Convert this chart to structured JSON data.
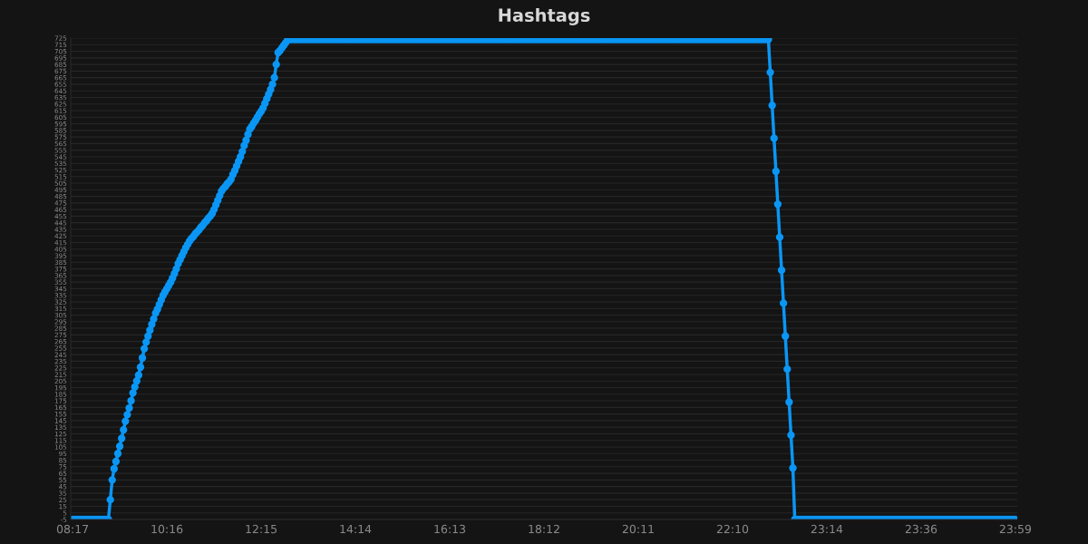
{
  "chart_data": {
    "type": "line",
    "title": "Hashtags",
    "categories": [
      "08:17",
      null,
      null,
      null,
      null,
      null,
      null,
      null,
      null,
      null,
      null,
      null,
      null,
      null,
      null,
      null,
      null,
      null,
      null,
      null,
      null,
      null,
      null,
      null,
      null,
      null,
      null,
      null,
      null,
      null,
      null,
      null,
      null,
      null,
      null,
      null,
      null,
      null,
      null,
      null,
      null,
      null,
      null,
      null,
      null,
      null,
      null,
      null,
      null,
      null,
      "10:16",
      null,
      null,
      null,
      null,
      null,
      null,
      null,
      null,
      null,
      null,
      null,
      null,
      null,
      null,
      null,
      null,
      null,
      null,
      null,
      null,
      null,
      null,
      null,
      null,
      null,
      null,
      null,
      null,
      null,
      null,
      null,
      null,
      null,
      null,
      null,
      null,
      null,
      null,
      null,
      null,
      null,
      null,
      null,
      null,
      null,
      null,
      null,
      null,
      null,
      "12:15",
      null,
      null,
      null,
      null,
      null,
      null,
      null,
      null,
      null,
      null,
      null,
      null,
      null,
      null,
      null,
      null,
      null,
      null,
      null,
      null,
      null,
      null,
      null,
      null,
      null,
      null,
      null,
      null,
      null,
      null,
      null,
      null,
      null,
      null,
      null,
      null,
      null,
      null,
      null,
      null,
      null,
      null,
      null,
      null,
      null,
      null,
      null,
      null,
      null,
      "14:14",
      null,
      null,
      null,
      null,
      null,
      null,
      null,
      null,
      null,
      null,
      null,
      null,
      null,
      null,
      null,
      null,
      null,
      null,
      null,
      null,
      null,
      null,
      null,
      null,
      null,
      null,
      null,
      null,
      null,
      null,
      null,
      null,
      null,
      null,
      null,
      null,
      null,
      null,
      null,
      null,
      null,
      null,
      null,
      null,
      null,
      null,
      null,
      null,
      null,
      "16:13",
      null,
      null,
      null,
      null,
      null,
      null,
      null,
      null,
      null,
      null,
      null,
      null,
      null,
      null,
      null,
      null,
      null,
      null,
      null,
      null,
      null,
      null,
      null,
      null,
      null,
      null,
      null,
      null,
      null,
      null,
      null,
      null,
      null,
      null,
      null,
      null,
      null,
      null,
      null,
      null,
      null,
      null,
      null,
      null,
      null,
      null,
      null,
      null,
      null,
      "18:12",
      null,
      null,
      null,
      null,
      null,
      null,
      null,
      null,
      null,
      null,
      null,
      null,
      null,
      null,
      null,
      null,
      null,
      null,
      null,
      null,
      null,
      null,
      null,
      null,
      null,
      null,
      null,
      null,
      null,
      null,
      null,
      null,
      null,
      null,
      null,
      null,
      null,
      null,
      null,
      null,
      null,
      null,
      null,
      null,
      null,
      null,
      null,
      null,
      null,
      "20:11",
      null,
      null,
      null,
      null,
      null,
      null,
      null,
      null,
      null,
      null,
      null,
      null,
      null,
      null,
      null,
      null,
      null,
      null,
      null,
      null,
      null,
      null,
      null,
      null,
      null,
      null,
      null,
      null,
      null,
      null,
      null,
      null,
      null,
      null,
      null,
      null,
      null,
      null,
      null,
      null,
      null,
      null,
      null,
      null,
      null,
      null,
      null,
      null,
      null,
      "22:10",
      null,
      null,
      null,
      null,
      null,
      null,
      null,
      null,
      null,
      null,
      null,
      null,
      null,
      null,
      null,
      null,
      null,
      null,
      null,
      null,
      null,
      null,
      null,
      null,
      null,
      null,
      null,
      null,
      null,
      null,
      null,
      null,
      null,
      null,
      null,
      null,
      null,
      null,
      null,
      null,
      null,
      null,
      null,
      null,
      null,
      null,
      null,
      null,
      null,
      "23:14",
      null,
      null,
      null,
      null,
      null,
      null,
      null,
      null,
      null,
      null,
      null,
      null,
      null,
      null,
      null,
      null,
      null,
      null,
      null,
      null,
      null,
      null,
      null,
      null,
      null,
      null,
      null,
      null,
      null,
      null,
      null,
      null,
      null,
      null,
      null,
      null,
      null,
      null,
      null,
      null,
      null,
      null,
      null,
      null,
      null,
      null,
      null,
      null,
      null,
      "23:36",
      null,
      null,
      null,
      null,
      null,
      null,
      null,
      null,
      null,
      null,
      null,
      null,
      null,
      null,
      null,
      null,
      null,
      null,
      null,
      null,
      null,
      null,
      null,
      null,
      null,
      null,
      null,
      null,
      null,
      null,
      null,
      null,
      null,
      null,
      null,
      null,
      null,
      null,
      null,
      null,
      null,
      null,
      null,
      null,
      null,
      null,
      null,
      null,
      null,
      "23:59"
    ],
    "values": [
      -5,
      -5,
      -5,
      -5,
      -5,
      -5,
      -5,
      -5,
      -5,
      -5,
      -5,
      -5,
      -5,
      -5,
      -5,
      -5,
      -5,
      -5,
      -5,
      -5,
      25,
      55,
      72,
      83,
      95,
      106,
      118,
      131,
      144,
      154,
      164,
      175,
      187,
      196,
      205,
      214,
      226,
      240,
      254,
      264,
      273,
      282,
      291,
      299,
      308,
      314,
      321,
      328,
      335,
      340,
      345,
      350,
      355,
      361,
      368,
      375,
      383,
      389,
      395,
      401,
      407,
      412,
      417,
      421,
      424,
      428,
      431,
      434,
      438,
      441,
      445,
      448,
      452,
      455,
      459,
      465,
      472,
      479,
      486,
      493,
      497,
      500,
      504,
      507,
      511,
      518,
      524,
      531,
      538,
      545,
      553,
      562,
      570,
      579,
      587,
      591,
      596,
      600,
      605,
      610,
      614,
      619,
      626,
      633,
      640,
      647,
      655,
      665,
      685,
      703,
      706,
      710,
      714,
      718,
      722,
      723,
      723,
      723,
      723,
      723,
      723,
      723,
      723,
      723,
      723,
      723,
      723,
      723,
      723,
      723,
      723,
      723,
      723,
      723,
      723,
      723,
      723,
      723,
      723,
      723,
      723,
      723,
      723,
      723,
      723,
      723,
      723,
      723,
      723,
      723,
      723,
      723,
      723,
      723,
      723,
      723,
      723,
      723,
      723,
      723,
      723,
      723,
      723,
      723,
      723,
      723,
      723,
      723,
      723,
      723,
      723,
      723,
      723,
      723,
      723,
      723,
      723,
      723,
      723,
      723,
      723,
      723,
      723,
      723,
      723,
      723,
      723,
      723,
      723,
      723,
      723,
      723,
      723,
      723,
      723,
      723,
      723,
      723,
      723,
      723,
      723,
      723,
      723,
      723,
      723,
      723,
      723,
      723,
      723,
      723,
      723,
      723,
      723,
      723,
      723,
      723,
      723,
      723,
      723,
      723,
      723,
      723,
      723,
      723,
      723,
      723,
      723,
      723,
      723,
      723,
      723,
      723,
      723,
      723,
      723,
      723,
      723,
      723,
      723,
      723,
      723,
      723,
      723,
      723,
      723,
      723,
      723,
      723,
      723,
      723,
      723,
      723,
      723,
      723,
      723,
      723,
      723,
      723,
      723,
      723,
      723,
      723,
      723,
      723,
      723,
      723,
      723,
      723,
      723,
      723,
      723,
      723,
      723,
      723,
      723,
      723,
      723,
      723,
      723,
      723,
      723,
      723,
      723,
      723,
      723,
      723,
      723,
      723,
      723,
      723,
      723,
      723,
      723,
      723,
      723,
      723,
      723,
      723,
      723,
      723,
      723,
      723,
      723,
      723,
      723,
      723,
      723,
      723,
      723,
      723,
      723,
      723,
      723,
      723,
      723,
      723,
      723,
      723,
      723,
      723,
      723,
      723,
      723,
      723,
      723,
      723,
      723,
      723,
      723,
      723,
      723,
      723,
      723,
      723,
      723,
      723,
      723,
      723,
      723,
      723,
      723,
      723,
      723,
      723,
      723,
      723,
      723,
      723,
      723,
      723,
      723,
      723,
      723,
      723,
      723,
      723,
      723,
      723,
      723,
      723,
      723,
      723,
      723,
      723,
      723,
      723,
      723,
      723,
      723,
      723,
      673,
      623,
      573,
      523,
      473,
      423,
      373,
      323,
      273,
      223,
      173,
      123,
      73,
      -5,
      -5,
      -5,
      -5,
      -5,
      -5,
      -5,
      -5,
      -5,
      -5,
      -5,
      -5,
      -5,
      -5,
      -5,
      -5,
      -5,
      -5,
      -5,
      -5,
      -5,
      -5,
      -5,
      -5,
      -5,
      -5,
      -5,
      -5,
      -5,
      -5,
      -5,
      -5,
      -5,
      -5,
      -5,
      -5,
      -5,
      -5,
      -5,
      -5,
      -5,
      -5,
      -5,
      -5,
      -5,
      -5,
      -5,
      -5,
      -5,
      -5,
      -5,
      -5,
      -5,
      -5,
      -5,
      -5,
      -5,
      -5,
      -5,
      -5,
      -5,
      -5,
      -5,
      -5,
      -5,
      -5,
      -5,
      -5,
      -5,
      -5,
      -5,
      -5,
      -5,
      -5,
      -5,
      -5,
      -5,
      -5,
      -5,
      -5,
      -5,
      -5,
      -5,
      -5,
      -5,
      -5,
      -5,
      -5,
      -5,
      -5,
      -5,
      -5,
      -5,
      -5,
      -5,
      -5,
      -5,
      -5,
      -5,
      -5,
      -5,
      -5,
      -5,
      -5,
      -5,
      -5,
      -5,
      -5,
      -5,
      -5,
      -5,
      -5,
      -5,
      -5,
      -5,
      -5,
      -5,
      -5
    ],
    "color": "#0a96f5",
    "marker": "circle",
    "line_style": "solid",
    "grid": "y",
    "ylim": [
      -5,
      725
    ],
    "yticks": [
      -5,
      5,
      15,
      25,
      35,
      45,
      55,
      65,
      75,
      85,
      95,
      105,
      115,
      125,
      135,
      145,
      155,
      165,
      175,
      185,
      195,
      205,
      215,
      225,
      235,
      245,
      255,
      265,
      275,
      285,
      295,
      305,
      315,
      325,
      335,
      345,
      355,
      365,
      375,
      385,
      395,
      405,
      415,
      425,
      435,
      445,
      455,
      465,
      475,
      485,
      495,
      505,
      515,
      525,
      535,
      545,
      555,
      565,
      575,
      585,
      595,
      605,
      615,
      625,
      635,
      645,
      655,
      665,
      675,
      685,
      695,
      705,
      715,
      725
    ]
  }
}
